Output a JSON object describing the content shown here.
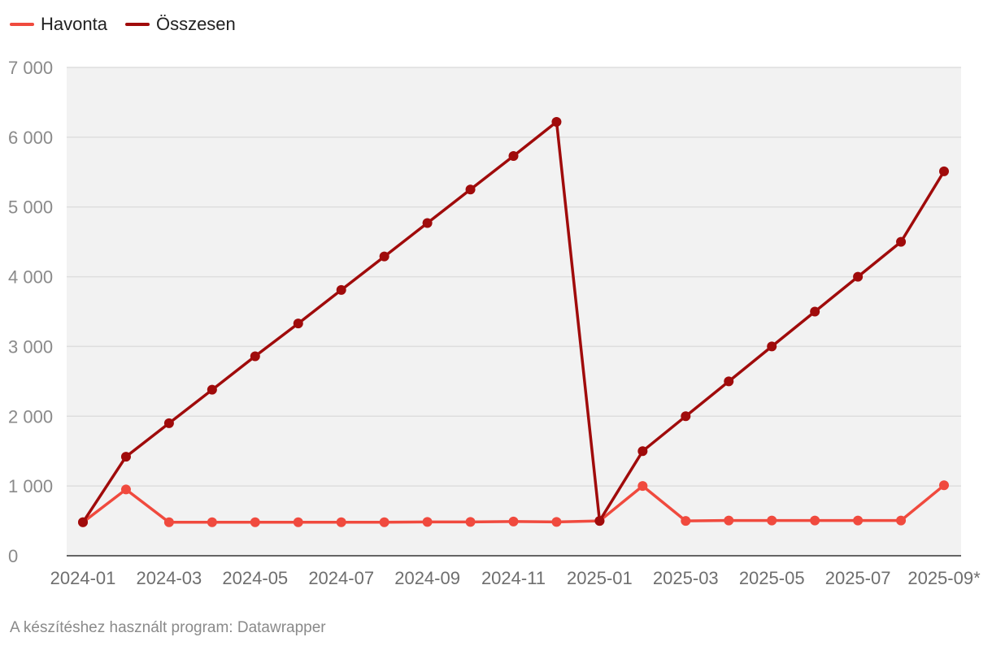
{
  "legend": [
    {
      "label": "Havonta",
      "color": "#f04a3e"
    },
    {
      "label": "Összesen",
      "color": "#a00b0b"
    }
  ],
  "footer": {
    "source": "A készítéshez használt program: Datawrapper"
  },
  "chart_data": {
    "type": "line",
    "title": "",
    "xlabel": "",
    "ylabel": "",
    "x": [
      "2024-01",
      "2024-02",
      "2024-03",
      "2024-04",
      "2024-05",
      "2024-06",
      "2024-07",
      "2024-08",
      "2024-09",
      "2024-10",
      "2024-11",
      "2024-12",
      "2025-01",
      "2025-02",
      "2025-03",
      "2025-04",
      "2025-05",
      "2025-06",
      "2025-07",
      "2025-08",
      "2025-09"
    ],
    "x_tick_labels": [
      "2024-01",
      "2024-03",
      "2024-05",
      "2024-07",
      "2024-09",
      "2024-11",
      "2025-01",
      "2025-03",
      "2025-05",
      "2025-07",
      "2025-09*"
    ],
    "ylim": [
      0,
      7000
    ],
    "y_tick_labels": [
      "0",
      "1 000",
      "2 000",
      "3 000",
      "4 000",
      "5 000",
      "6 000",
      "7 000"
    ],
    "grid": true,
    "legend_position": "top-left",
    "plot_background": "#f2f2f2",
    "series": [
      {
        "name": "Havonta",
        "color": "#f04a3e",
        "values": [
          480,
          950,
          480,
          480,
          480,
          480,
          480,
          480,
          485,
          485,
          490,
          485,
          500,
          1000,
          500,
          505,
          505,
          505,
          505,
          505,
          1010
        ]
      },
      {
        "name": "Összesen",
        "color": "#a00b0b",
        "values": [
          480,
          1420,
          1900,
          2380,
          2860,
          3330,
          3810,
          4290,
          4770,
          5250,
          5730,
          6220,
          500,
          1500,
          2000,
          2500,
          3000,
          3500,
          4000,
          4500,
          5510
        ]
      }
    ]
  }
}
